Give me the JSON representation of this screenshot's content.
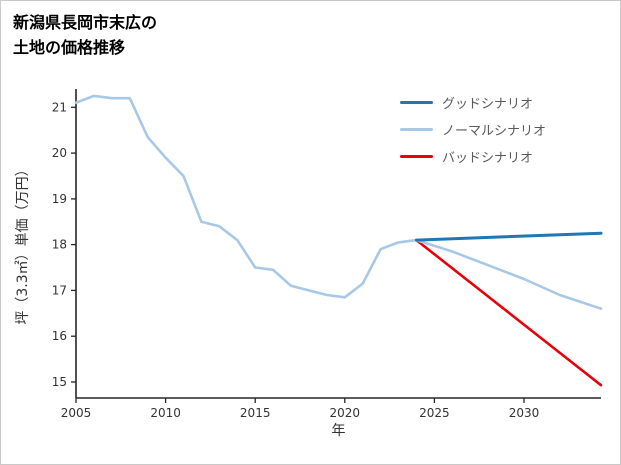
{
  "page": {
    "title_line1": "新潟県長岡市末広の",
    "title_line2": "土地の価格推移"
  },
  "chart_data": {
    "type": "line",
    "title": "新潟県長岡市末広の土地の価格推移",
    "xlabel": "年",
    "ylabel": "坪（3.3㎡）単価（万円）",
    "xlim": [
      2005,
      2034.3
    ],
    "ylim": [
      14.65,
      21.4
    ],
    "xticks": [
      2005,
      2010,
      2015,
      2020,
      2025,
      2030
    ],
    "yticks": [
      15,
      16,
      17,
      18,
      19,
      20,
      21
    ],
    "grid": false,
    "legend_position": "top-right",
    "axis_color": "#262626",
    "series": [
      {
        "name": "グッドシナリオ",
        "color": "#1f77b4",
        "width": 3,
        "x": [
          2024,
          2034.3
        ],
        "y": [
          18.1,
          18.25
        ]
      },
      {
        "name": "ノーマルシナリオ",
        "color": "#a8c8e8",
        "width": 2.6,
        "x": [
          2005,
          2006,
          2007,
          2008,
          2009,
          2010,
          2011,
          2012,
          2013,
          2014,
          2015,
          2016,
          2017,
          2018,
          2019,
          2020,
          2021,
          2022,
          2023,
          2024,
          2026,
          2028,
          2030,
          2032,
          2034.3
        ],
        "y": [
          21.1,
          21.25,
          21.2,
          21.2,
          20.35,
          19.9,
          19.5,
          18.5,
          18.4,
          18.1,
          17.5,
          17.45,
          17.1,
          17.0,
          16.9,
          16.85,
          17.15,
          17.9,
          18.05,
          18.1,
          17.85,
          17.55,
          17.25,
          16.9,
          16.6
        ]
      },
      {
        "name": "バッドシナリオ",
        "color": "#e8000b",
        "width": 2.6,
        "x": [
          2024,
          2034.3
        ],
        "y": [
          18.1,
          14.93
        ]
      }
    ]
  }
}
